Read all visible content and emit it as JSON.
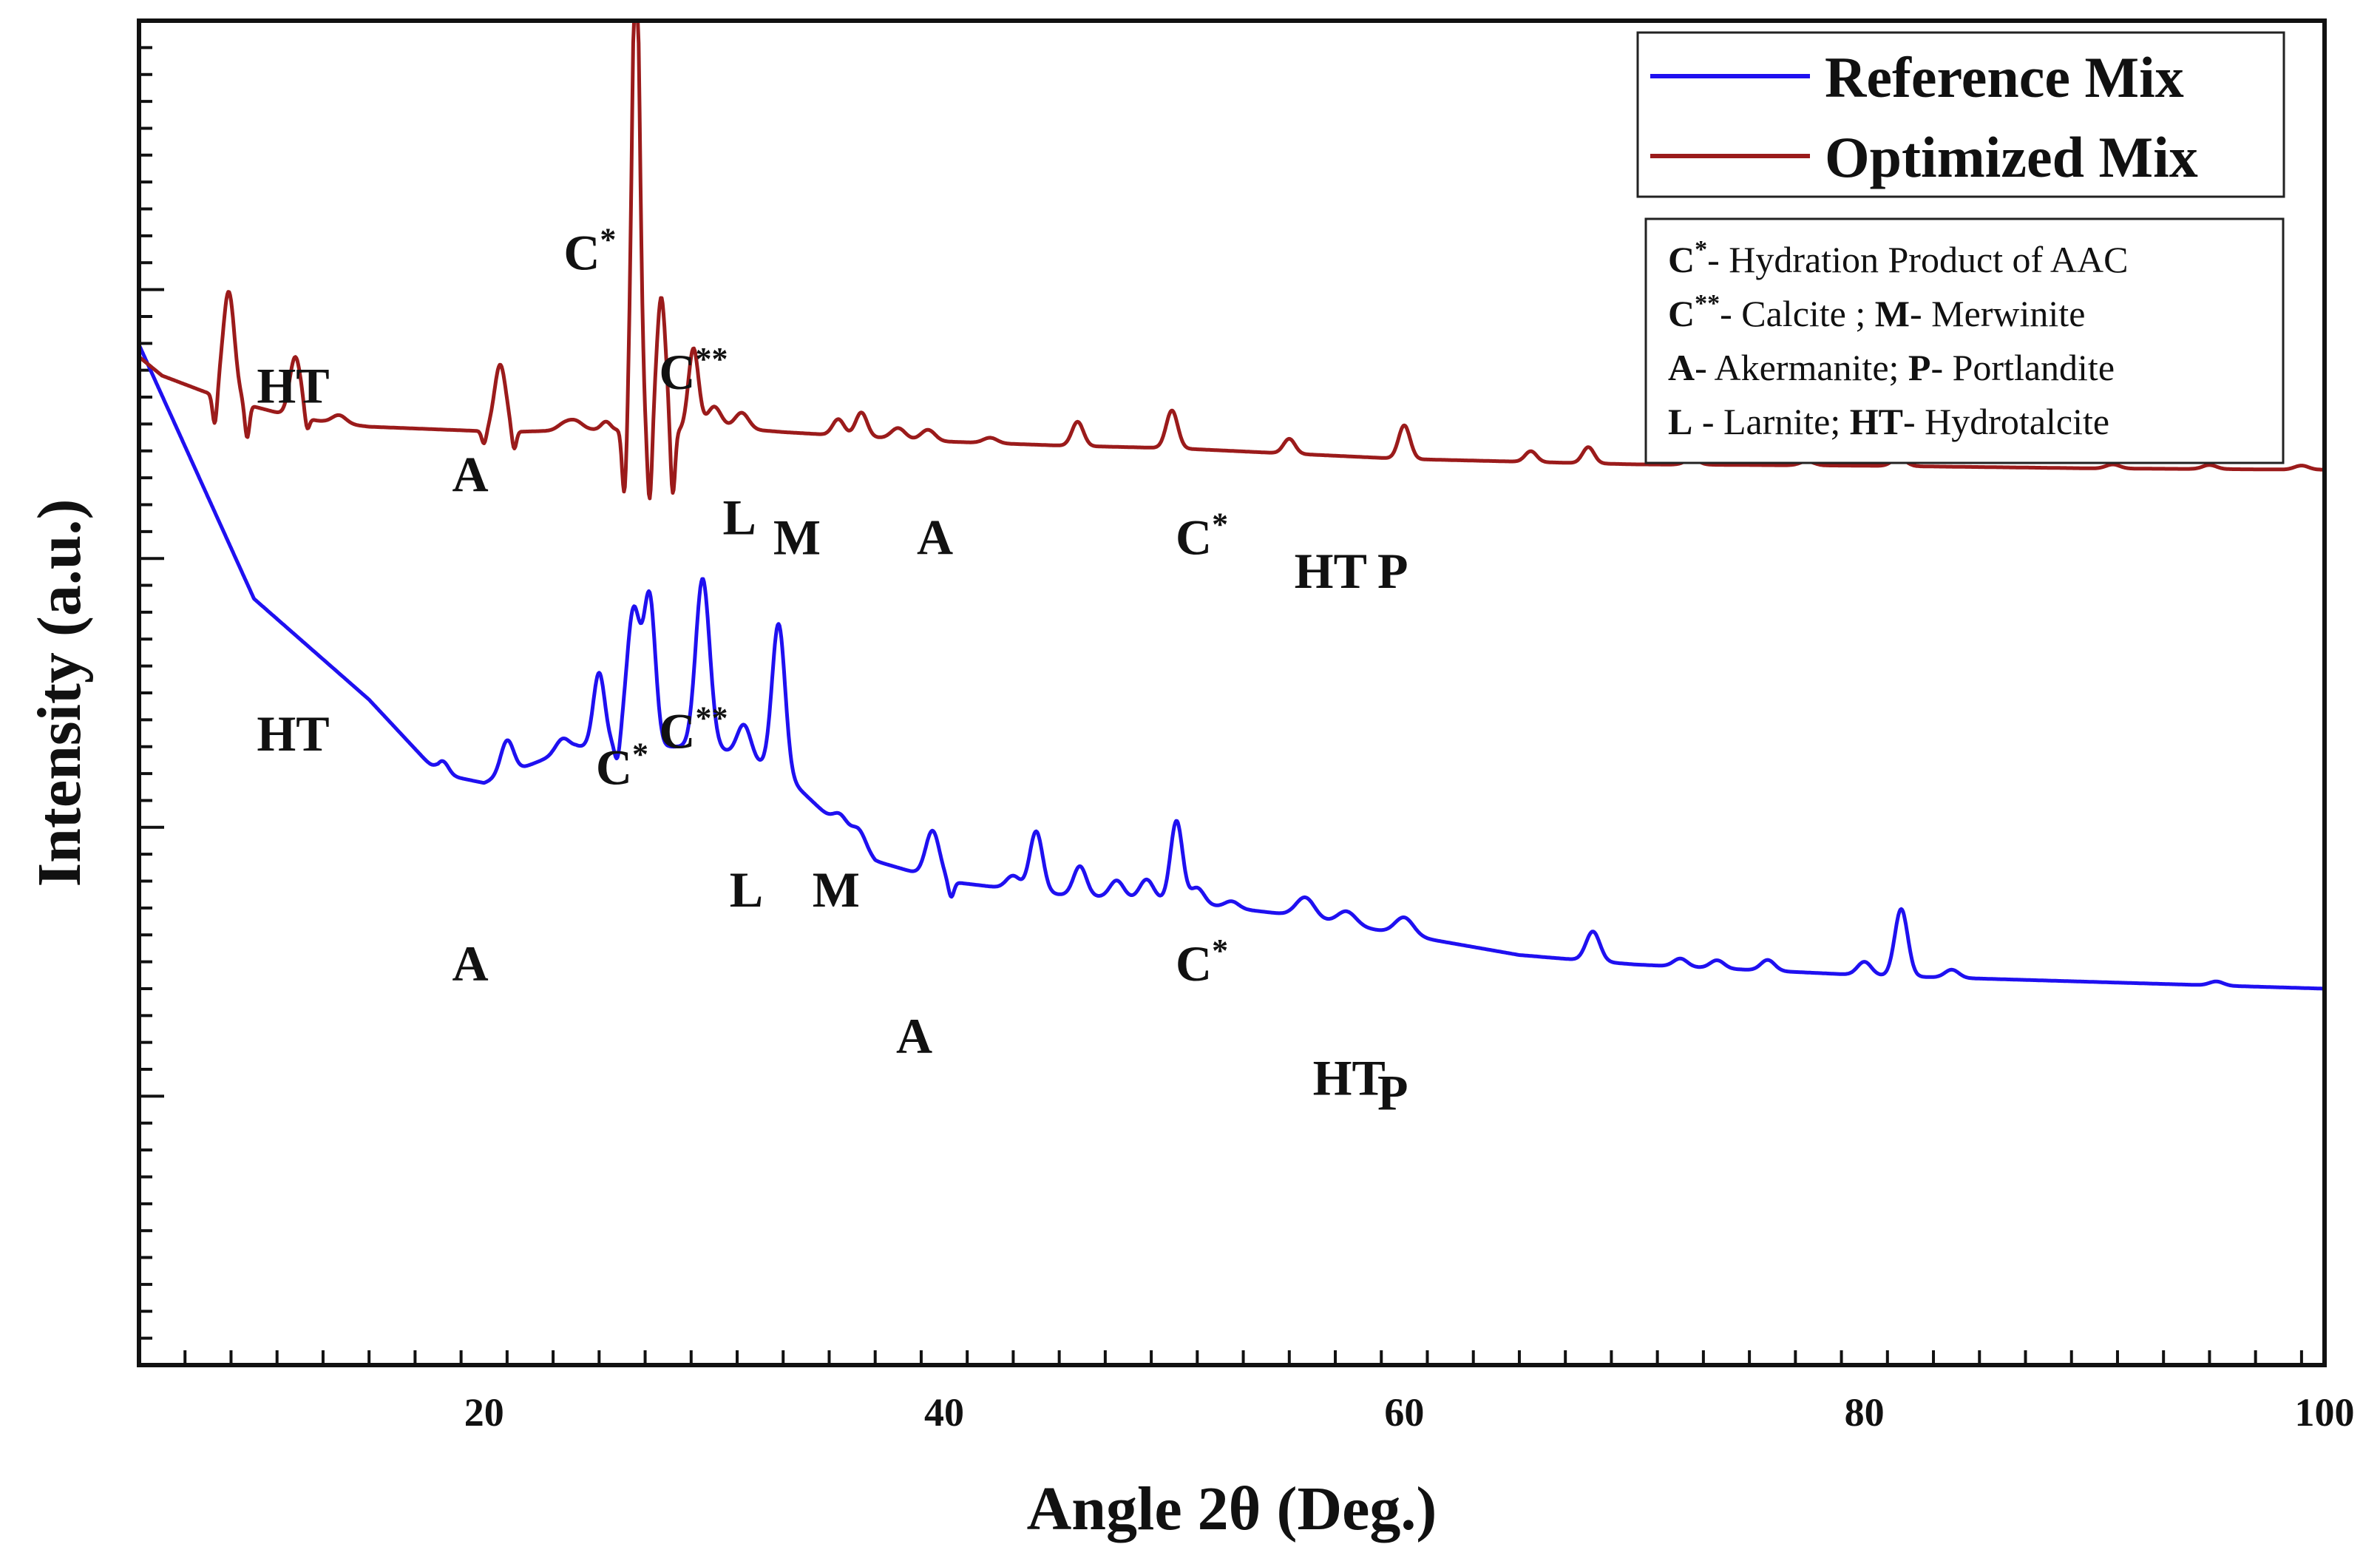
{
  "chart_data": {
    "type": "line",
    "title": "",
    "xlabel": "Angle 2θ (Deg.)",
    "ylabel": "Intensity (a.u.)",
    "xlim": [
      5,
      100
    ],
    "ylim": [
      0,
      100
    ],
    "x_ticks": [
      20,
      40,
      60,
      80,
      100
    ],
    "y_tick_labels_shown": false,
    "grid": false,
    "legend_position": "top-right",
    "colors": {
      "reference": "#1f10f0",
      "optimized": "#9b1b1b",
      "axis": "#111111"
    },
    "series": [
      {
        "name": "Reference Mix",
        "color": "#1f10f0",
        "baseline": [
          [
            5,
            75.9
          ],
          [
            10,
            57
          ],
          [
            15,
            49.5
          ],
          [
            18,
            44
          ],
          [
            20,
            43.3
          ],
          [
            24,
            46
          ],
          [
            27,
            46
          ],
          [
            30,
            46
          ],
          [
            33,
            44
          ],
          [
            37,
            37.5
          ],
          [
            40,
            36
          ],
          [
            45,
            35
          ],
          [
            50,
            34.5
          ],
          [
            55,
            33.5
          ],
          [
            60,
            32
          ],
          [
            65,
            30.5
          ],
          [
            70,
            29.8
          ],
          [
            80,
            29
          ],
          [
            90,
            28.5
          ],
          [
            100,
            28
          ]
        ],
        "peaks": [
          [
            18.2,
            1.0,
            0.25
          ],
          [
            21.0,
            2.5,
            0.28
          ],
          [
            23.4,
            1.0,
            0.3
          ],
          [
            25.0,
            5.5,
            0.25
          ],
          [
            26.5,
            10.2,
            0.3
          ],
          [
            27.2,
            10.8,
            0.25
          ],
          [
            29.5,
            12.5,
            0.3
          ],
          [
            31.3,
            2.5,
            0.3
          ],
          [
            32.8,
            11.0,
            0.28
          ],
          [
            35.5,
            1.0,
            0.3
          ],
          [
            36.3,
            1.2,
            0.3
          ],
          [
            39.5,
            3.5,
            0.3
          ],
          [
            43.0,
            1.0,
            0.3
          ],
          [
            44.0,
            4.5,
            0.28
          ],
          [
            45.9,
            2.2,
            0.28
          ],
          [
            47.5,
            1.3,
            0.3
          ],
          [
            48.8,
            1.5,
            0.3
          ],
          [
            50.1,
            6.0,
            0.26
          ],
          [
            51.0,
            1.2,
            0.3
          ],
          [
            52.5,
            0.5,
            0.3
          ],
          [
            55.7,
            1.5,
            0.4
          ],
          [
            57.5,
            1.0,
            0.4
          ],
          [
            60.0,
            1.3,
            0.4
          ],
          [
            68.2,
            2.2,
            0.3
          ],
          [
            72.0,
            0.6,
            0.3
          ],
          [
            73.6,
            0.6,
            0.3
          ],
          [
            75.8,
            0.8,
            0.3
          ],
          [
            80.0,
            1.0,
            0.3
          ],
          [
            81.6,
            5.0,
            0.28
          ],
          [
            83.8,
            0.6,
            0.3
          ],
          [
            95.3,
            0.3,
            0.3
          ]
        ],
        "dips": [
          [
            25.8,
            1.5,
            0.12
          ],
          [
            40.3,
            1.2,
            0.12
          ]
        ]
      },
      {
        "name": "Optimized Mix",
        "color": "#9b1b1b",
        "baseline": [
          [
            5,
            75
          ],
          [
            6,
            73.6
          ],
          [
            8,
            72.3
          ],
          [
            10,
            71.3
          ],
          [
            12,
            70.4
          ],
          [
            15,
            69.8
          ],
          [
            18,
            69.6
          ],
          [
            21,
            69.4
          ],
          [
            25,
            69.6
          ],
          [
            28,
            69.4
          ],
          [
            30,
            69.8
          ],
          [
            33,
            69.4
          ],
          [
            36,
            69.1
          ],
          [
            40,
            68.7
          ],
          [
            45,
            68.4
          ],
          [
            50,
            68.2
          ],
          [
            55,
            67.8
          ],
          [
            60,
            67.4
          ],
          [
            65,
            67.2
          ],
          [
            70,
            67
          ],
          [
            80,
            66.9
          ],
          [
            90,
            66.7
          ],
          [
            100,
            66.6
          ]
        ],
        "peaks": [
          [
            8.9,
            8.0,
            0.25
          ],
          [
            11.8,
            4.5,
            0.25
          ],
          [
            13.7,
            0.6,
            0.3
          ],
          [
            20.7,
            5.0,
            0.25
          ],
          [
            23.5,
            0.5,
            0.3
          ],
          [
            24.0,
            0.6,
            0.3
          ],
          [
            25.3,
            0.6,
            0.2
          ],
          [
            26.6,
            37.0,
            0.17
          ],
          [
            27.7,
            10.0,
            0.2
          ],
          [
            29.1,
            6.0,
            0.22
          ],
          [
            30.0,
            1.5,
            0.3
          ],
          [
            31.2,
            1.2,
            0.3
          ],
          [
            35.4,
            1.2,
            0.25
          ],
          [
            36.4,
            1.8,
            0.25
          ],
          [
            38.0,
            0.8,
            0.3
          ],
          [
            39.3,
            0.8,
            0.3
          ],
          [
            42.0,
            0.4,
            0.3
          ],
          [
            45.8,
            1.8,
            0.25
          ],
          [
            49.9,
            2.8,
            0.25
          ],
          [
            55.0,
            1.1,
            0.25
          ],
          [
            60.0,
            2.5,
            0.25
          ],
          [
            65.5,
            0.8,
            0.25
          ],
          [
            68.0,
            1.2,
            0.25
          ],
          [
            72.5,
            0.4,
            0.3
          ],
          [
            77.5,
            0.3,
            0.3
          ],
          [
            81.5,
            0.6,
            0.3
          ],
          [
            90.8,
            0.3,
            0.3
          ],
          [
            95.0,
            0.3,
            0.3
          ],
          [
            99.0,
            0.3,
            0.3
          ]
        ],
        "dips": [
          [
            8.3,
            2.5,
            0.1
          ],
          [
            9.7,
            2.5,
            0.1
          ],
          [
            12.3,
            1.2,
            0.1
          ],
          [
            20.0,
            1.0,
            0.1
          ],
          [
            21.3,
            1.5,
            0.1
          ],
          [
            26.1,
            5.0,
            0.1
          ],
          [
            27.2,
            5.5,
            0.1
          ],
          [
            28.2,
            5.0,
            0.1
          ]
        ]
      }
    ],
    "annotations": [
      {
        "text": "HT",
        "x": 11.7,
        "y": 71.6
      },
      {
        "text": "A",
        "x": 19.4,
        "y": 65.0
      },
      {
        "text": "C",
        "sup": "*",
        "x": 24.6,
        "y": 81.5
      },
      {
        "text": "C",
        "sup": "**",
        "x": 29.1,
        "y": 72.6
      },
      {
        "text": "L",
        "x": 31.1,
        "y": 61.8
      },
      {
        "text": "M",
        "x": 33.6,
        "y": 60.3
      },
      {
        "text": "A",
        "x": 39.6,
        "y": 60.3
      },
      {
        "text": "C",
        "sup": "*",
        "x": 51.2,
        "y": 60.3
      },
      {
        "text": "HT",
        "x": 56.8,
        "y": 57.8
      },
      {
        "text": "P",
        "x": 59.5,
        "y": 57.8
      },
      {
        "text": "HT",
        "x": 11.7,
        "y": 45.7
      },
      {
        "text": "A",
        "x": 19.4,
        "y": 28.6
      },
      {
        "text": "C",
        "sup": "*",
        "x": 26.0,
        "y": 43.2
      },
      {
        "text": "C",
        "sup": "**",
        "x": 29.1,
        "y": 45.9
      },
      {
        "text": "L",
        "x": 31.4,
        "y": 34.1
      },
      {
        "text": "M",
        "x": 35.3,
        "y": 34.1
      },
      {
        "text": "A",
        "x": 38.7,
        "y": 23.2
      },
      {
        "text": "C",
        "sup": "*",
        "x": 51.2,
        "y": 28.6
      },
      {
        "text": "HT",
        "x": 57.6,
        "y": 20.1
      },
      {
        "text": "P",
        "x": 59.5,
        "y": 19.0
      }
    ]
  },
  "legend": {
    "entries": [
      {
        "label": "Reference Mix",
        "color": "#1f10f0"
      },
      {
        "label": "Optimized Mix",
        "color": "#9b1b1b"
      }
    ]
  },
  "phase_key": {
    "lines": [
      {
        "code": "C",
        "sup": "*",
        "rest": "- Hydration Product of AAC"
      },
      {
        "code": "C",
        "sup": "**",
        "rest": "- Calcite ; ",
        "code2": "M",
        "rest2": "- Merwinite"
      },
      {
        "code": "A",
        "rest": "- Akermanite; ",
        "code2": "P",
        "rest2": "- Portlandite"
      },
      {
        "code": "L",
        "rest": " - Larnite; ",
        "code2": "HT",
        "rest2": "- Hydrotalcite"
      }
    ]
  }
}
